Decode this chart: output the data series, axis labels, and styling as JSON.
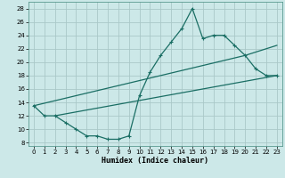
{
  "title": "",
  "xlabel": "Humidex (Indice chaleur)",
  "xlim": [
    -0.5,
    23.5
  ],
  "ylim": [
    7.5,
    29
  ],
  "yticks": [
    8,
    10,
    12,
    14,
    16,
    18,
    20,
    22,
    24,
    26,
    28
  ],
  "xticks": [
    0,
    1,
    2,
    3,
    4,
    5,
    6,
    7,
    8,
    9,
    10,
    11,
    12,
    13,
    14,
    15,
    16,
    17,
    18,
    19,
    20,
    21,
    22,
    23
  ],
  "bg_color": "#cce8e8",
  "line_color": "#1a6e64",
  "grid_color": "#aac8c8",
  "line1_x": [
    0,
    1,
    2,
    3,
    4,
    5,
    6,
    7,
    8,
    9,
    10,
    11,
    12,
    13,
    14,
    15,
    16,
    17,
    18,
    19,
    20,
    21,
    22,
    23
  ],
  "line1_y": [
    13.5,
    12.0,
    12.0,
    11.0,
    10.0,
    9.0,
    9.0,
    8.5,
    8.5,
    9.0,
    15.0,
    18.5,
    21.0,
    23.0,
    25.0,
    28.0,
    23.5,
    24.0,
    24.0,
    22.5,
    21.0,
    19.0,
    18.0,
    18.0
  ],
  "line2_x": [
    0,
    20,
    23
  ],
  "line2_y": [
    13.5,
    21.0,
    22.5
  ],
  "line3_x": [
    2,
    23
  ],
  "line3_y": [
    12.0,
    18.0
  ]
}
